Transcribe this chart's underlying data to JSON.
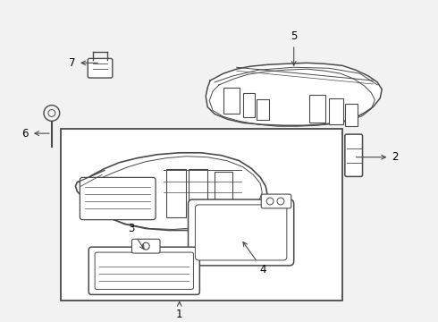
{
  "bg_color": "#f2f2f2",
  "line_color": "#4a4a4a",
  "white": "#ffffff",
  "fig_width": 4.9,
  "fig_height": 3.6,
  "dpi": 100
}
